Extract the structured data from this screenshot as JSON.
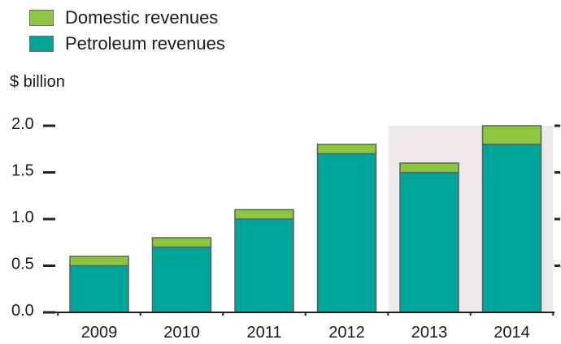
{
  "chart_data": {
    "type": "bar",
    "stacked": true,
    "ylabel": "$ billion",
    "categories": [
      "2009",
      "2010",
      "2011",
      "2012",
      "2013",
      "2014"
    ],
    "y_ticks": [
      "0.0",
      "0.5",
      "1.0",
      "1.5",
      "2.0"
    ],
    "ylim": [
      0,
      2.0
    ],
    "grid": false,
    "legend_position": "top-left",
    "highlighted_categories": [
      "2013",
      "2014"
    ],
    "series": [
      {
        "name": "Petroleum revenues",
        "color": "#00a59a",
        "values": [
          0.5,
          0.7,
          1.0,
          1.7,
          1.5,
          1.8
        ]
      },
      {
        "name": "Domestic revenues",
        "color": "#8cc63f",
        "values": [
          0.1,
          0.1,
          0.1,
          0.1,
          0.1,
          0.2
        ]
      }
    ],
    "colors": {
      "highlight_background": "#efe9ea",
      "bar_outline": "#5f5f5f",
      "axis": "#222222"
    }
  }
}
